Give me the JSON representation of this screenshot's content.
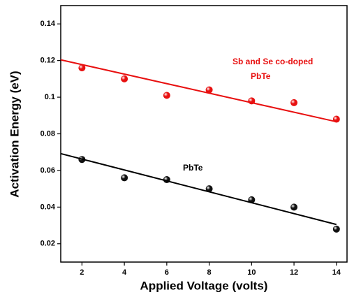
{
  "chart_data": {
    "type": "scatter",
    "x_label": "Applied Voltage (volts)",
    "y_label": "Activation Energy (eV)",
    "xlim": [
      1,
      14.5
    ],
    "ylim": [
      0.01,
      0.15
    ],
    "xticks": [
      2,
      4,
      6,
      8,
      10,
      12,
      14
    ],
    "yticks": [
      0.02,
      0.04,
      0.06,
      0.08,
      0.1,
      0.12,
      0.14
    ],
    "series": [
      {
        "mode": "markers",
        "color": "#e81010",
        "x": [
          2,
          4,
          6,
          8,
          10,
          12,
          14
        ],
        "values": [
          0.116,
          0.11,
          0.101,
          0.104,
          0.098,
          0.097,
          0.088
        ]
      },
      {
        "mode": "markers",
        "color": "#111111",
        "x": [
          2,
          4,
          6,
          8,
          10,
          12,
          14
        ],
        "values": [
          0.066,
          0.056,
          0.055,
          0.05,
          0.044,
          0.04,
          0.028
        ]
      },
      {
        "mode": "line",
        "color": "#e81010",
        "x": [
          1,
          14
        ],
        "values": [
          0.1204,
          0.0866
        ]
      },
      {
        "mode": "line",
        "color": "#000000",
        "x": [
          1,
          14
        ],
        "values": [
          0.0692,
          0.0305
        ]
      }
    ],
    "annotations": [
      {
        "lines": [
          "Sb and Se co-doped",
          "PbTe"
        ],
        "color": "#e81010"
      },
      {
        "lines": [
          "PbTe"
        ],
        "color": "#000000"
      }
    ]
  }
}
